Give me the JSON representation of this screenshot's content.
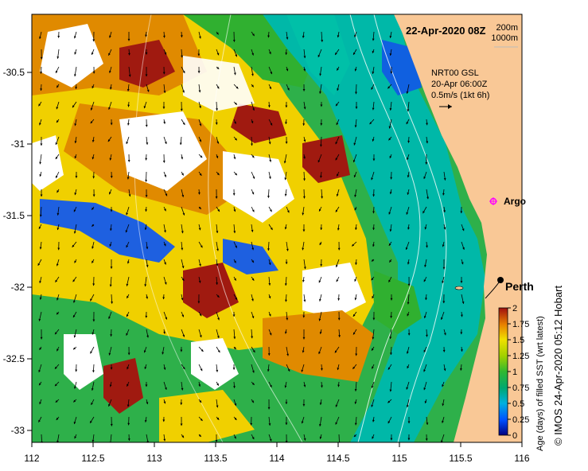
{
  "map": {
    "title": "22-Apr-2020 08Z",
    "depth_contours": [
      "200m",
      "1000m"
    ],
    "current_source": "NRT00 GSL",
    "current_time": "20-Apr 06:00Z",
    "vector_scale": "0.5m/s (1kt 6h)",
    "places": [
      {
        "name": "Argo",
        "lon": 115.75,
        "lat": -31.45,
        "marker": "magenta-star"
      },
      {
        "name": "Perth",
        "lon": 115.86,
        "lat": -31.95,
        "marker": "black-dot"
      }
    ],
    "land_color": "#f9c896",
    "x_ticks": [
      "112",
      "112.5",
      "113",
      "113.5",
      "114",
      "114.5",
      "115",
      "115.5",
      "116"
    ],
    "y_ticks": [
      "-30.5",
      "-31",
      "-31.5",
      "-32",
      "-32.5",
      "-33"
    ]
  },
  "colorbar": {
    "title": "Age (days) of filled SST (wrt latest)",
    "ticks": [
      "0",
      "0.25",
      "0.5",
      "0.75",
      "1",
      "1.25",
      "1.5",
      "1.75",
      "2"
    ],
    "colors": [
      "#000080",
      "#0060ff",
      "#00c0c0",
      "#00b060",
      "#40c040",
      "#a0d000",
      "#f0e000",
      "#f0a000",
      "#d06000",
      "#a01010"
    ]
  },
  "credit": "© IMOS 24-Apr-2020 05:12 Hobart"
}
